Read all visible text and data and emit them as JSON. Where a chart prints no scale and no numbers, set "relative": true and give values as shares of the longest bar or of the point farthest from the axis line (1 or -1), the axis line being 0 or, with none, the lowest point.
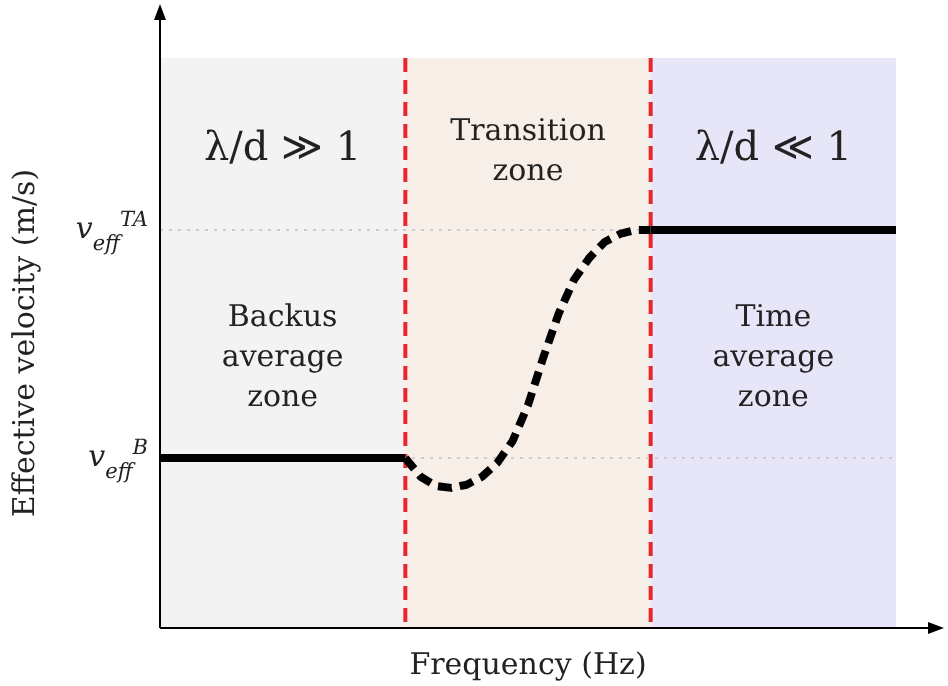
{
  "chart_data": {
    "type": "line",
    "relative": true,
    "xlabel": "Frequency (Hz)",
    "ylabel": "Effective velocity (m/s)",
    "categories": [
      null,
      null,
      null,
      null,
      null,
      null,
      null,
      null,
      null,
      null,
      null,
      null,
      null,
      null,
      null,
      null,
      null,
      null,
      null,
      null,
      null,
      null,
      null,
      null,
      null,
      null,
      null,
      null,
      null,
      null,
      null,
      null,
      null,
      null,
      null,
      null,
      null,
      null,
      null,
      null,
      null,
      null,
      null,
      null,
      null,
      null,
      null,
      null,
      null
    ],
    "series": [
      {
        "color": "#000000",
        "line_style": "solid",
        "values": [
          0.427,
          0.427,
          0.427,
          0.427,
          0.427,
          0.427,
          0.427,
          0.427,
          0.427,
          0.427,
          0.427,
          0.427,
          0.427,
          0.427,
          0.427,
          0.427,
          0.427,
          null,
          null,
          null,
          null,
          null,
          null,
          null,
          null,
          null,
          null,
          null,
          null,
          null,
          null,
          null,
          null,
          null,
          null,
          null,
          null,
          null,
          null,
          null,
          null,
          null,
          null,
          null,
          null,
          null,
          null,
          null,
          null
        ]
      },
      {
        "color": "#000000",
        "line_style": "dashed",
        "values": [
          null,
          null,
          null,
          null,
          null,
          null,
          null,
          null,
          null,
          null,
          null,
          null,
          null,
          null,
          null,
          null,
          0.427,
          0.38,
          0.357,
          0.352,
          0.36,
          0.38,
          0.415,
          0.47,
          0.56,
          0.68,
          0.79,
          0.875,
          0.93,
          0.97,
          0.99,
          1,
          1,
          null,
          null,
          null,
          null,
          null,
          null,
          null,
          null,
          null,
          null,
          null,
          null,
          null,
          null,
          null,
          null
        ]
      },
      {
        "color": "#000000",
        "line_style": "solid",
        "values": [
          null,
          null,
          null,
          null,
          null,
          null,
          null,
          null,
          null,
          null,
          null,
          null,
          null,
          null,
          null,
          null,
          null,
          null,
          null,
          null,
          null,
          null,
          null,
          null,
          null,
          null,
          null,
          null,
          null,
          null,
          null,
          null,
          1,
          1,
          1,
          1,
          1,
          1,
          1,
          1,
          1,
          1,
          1,
          1,
          1,
          1,
          1,
          1,
          1
        ]
      }
    ],
    "ref_lines": [
      {
        "axis": "y",
        "value": 0.427,
        "label": "v$_{eff}$$^{B}$",
        "color": "#cccccc",
        "line_style": "dotted"
      },
      {
        "axis": "y",
        "value": 1,
        "label": "v$_{eff}$$^{TA}$",
        "color": "#cccccc",
        "line_style": "dotted"
      }
    ],
    "annotations": [
      "λ/d ≫ 1",
      "Transition zone",
      "λ/d ≪ 1",
      "Backus average zone",
      "Time average zone"
    ]
  }
}
